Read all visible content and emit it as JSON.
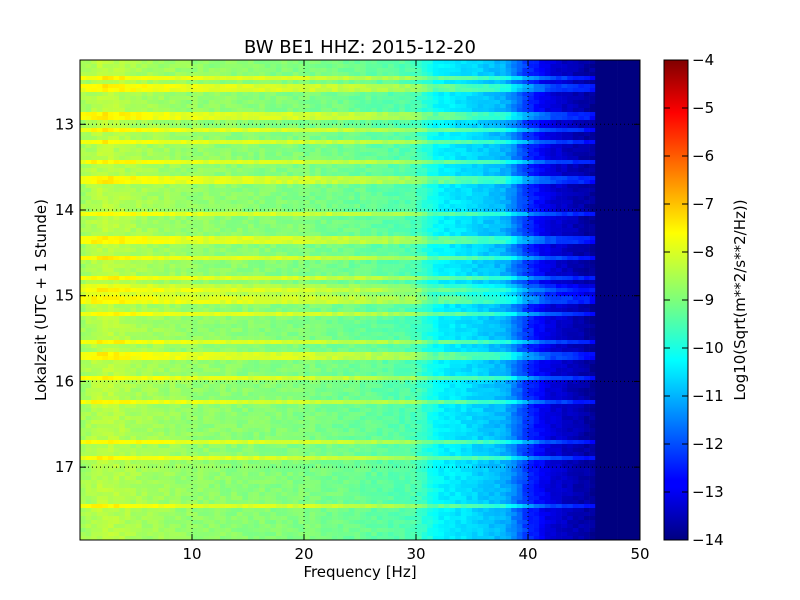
{
  "chart_data": {
    "type": "heatmap",
    "title": "BW BE1 HHZ: 2015-12-20",
    "xlabel": "Frequency [Hz]",
    "ylabel": "Lokalzeit (UTC + 1 Stunde)",
    "colorbar_label": "Log10(Sqrt(m**2/s**2/Hz))",
    "xlim": [
      0,
      50
    ],
    "ylim": [
      12.25,
      17.85
    ],
    "y_inverted": true,
    "x_ticks": [
      10,
      20,
      30,
      40,
      50
    ],
    "y_ticks": [
      13,
      14,
      15,
      16,
      17
    ],
    "color_range": [
      -14,
      -4
    ],
    "colorbar_ticks": [
      -4,
      -5,
      -6,
      -7,
      -8,
      -9,
      -10,
      -11,
      -12,
      -13,
      -14
    ],
    "colormap": "jet",
    "grid": true,
    "spectrum_profile": {
      "frequency_hz": [
        0,
        2,
        5,
        10,
        15,
        20,
        25,
        30,
        32,
        35,
        38,
        40,
        42,
        45,
        47,
        50
      ],
      "level": [
        -8.7,
        -8.4,
        -8.6,
        -8.8,
        -8.9,
        -9.0,
        -9.2,
        -9.5,
        -10.3,
        -10.6,
        -11.0,
        -12.3,
        -13.1,
        -13.6,
        -14.0,
        -14.0
      ]
    },
    "bright_rows_hour": [
      12.45,
      12.57,
      12.9,
      13.06,
      13.2,
      13.45,
      13.65,
      14.05,
      14.35,
      14.55,
      14.8,
      14.95,
      15.05,
      15.2,
      15.55,
      15.7,
      15.95,
      16.25,
      16.7,
      16.9,
      17.45
    ]
  }
}
